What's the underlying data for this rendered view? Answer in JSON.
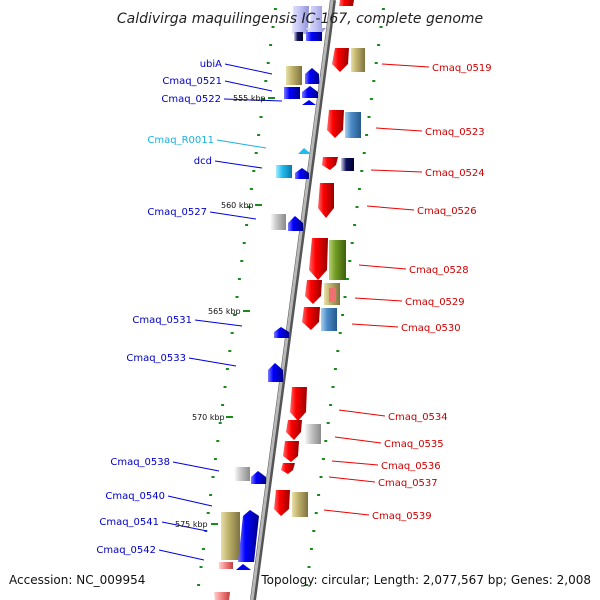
{
  "title": "Caldivirga maquilingensis IC-167, complete genome",
  "accession": "Accession: NC_009954",
  "summary": "Topology: circular; Length: 2,077,567 bp; Genes: 2,008",
  "kbp_marks": [
    "555 kbp",
    "560 kbp",
    "565 kbp",
    "570 kbp",
    "575 kbp"
  ],
  "left_genes": [
    {
      "label": "ubiA",
      "type": "protein"
    },
    {
      "label": "Cmaq_0521",
      "type": "protein"
    },
    {
      "label": "Cmaq_0522",
      "type": "protein"
    },
    {
      "label": "Cmaq_R0011",
      "type": "rna"
    },
    {
      "label": "dcd",
      "type": "protein"
    },
    {
      "label": "Cmaq_0527",
      "type": "protein"
    },
    {
      "label": "Cmaq_0531",
      "type": "protein"
    },
    {
      "label": "Cmaq_0533",
      "type": "protein"
    },
    {
      "label": "Cmaq_0538",
      "type": "protein"
    },
    {
      "label": "Cmaq_0540",
      "type": "protein"
    },
    {
      "label": "Cmaq_0541",
      "type": "protein"
    },
    {
      "label": "Cmaq_0542",
      "type": "protein"
    }
  ],
  "right_genes": [
    {
      "label": "Cmaq_0519"
    },
    {
      "label": "Cmaq_0523"
    },
    {
      "label": "Cmaq_0524"
    },
    {
      "label": "Cmaq_0526"
    },
    {
      "label": "Cmaq_0528"
    },
    {
      "label": "Cmaq_0529"
    },
    {
      "label": "Cmaq_0530"
    },
    {
      "label": "Cmaq_0534"
    },
    {
      "label": "Cmaq_0535"
    },
    {
      "label": "Cmaq_0536"
    },
    {
      "label": "Cmaq_0537"
    },
    {
      "label": "Cmaq_0539"
    }
  ],
  "colors": {
    "forward_strand": "#ee0000",
    "reverse_strand": "#0000dd",
    "rna": "#1ab0e0",
    "backbone": "#909090",
    "tick": "#1a8a1a"
  }
}
